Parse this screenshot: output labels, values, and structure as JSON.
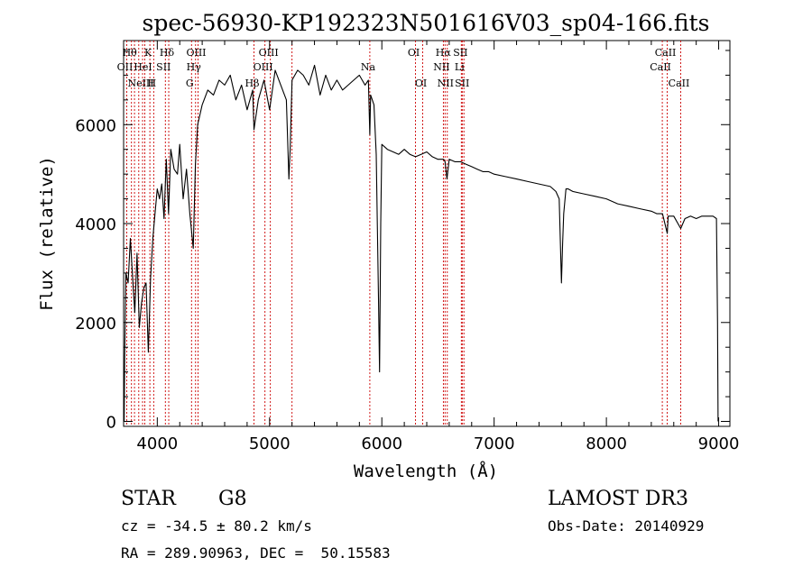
{
  "header": {
    "title": "spec-56930-KP192323N501616V03_sp04-166.fits"
  },
  "footer": {
    "class_label": "STAR",
    "subclass_label": "G8",
    "survey_label": "LAMOST DR3",
    "cz_text": "cz = -34.5 ± 80.2 km/s",
    "obs_date_text": "Obs-Date: 20140929",
    "coords_text": "RA = 289.90963, DEC =  50.15583"
  },
  "chart_data": {
    "type": "line",
    "xlabel": "Wavelength (Å)",
    "ylabel": "Flux (relative)",
    "xlim": [
      3700,
      9100
    ],
    "ylim": [
      -100,
      7700
    ],
    "x_ticks": [
      4000,
      5000,
      6000,
      7000,
      8000,
      9000
    ],
    "y_ticks": [
      0,
      2000,
      4000,
      6000
    ],
    "grid": false,
    "line_color": "#000000",
    "line_marker_color": "#cc0000",
    "series": [
      {
        "x": [
          3705,
          3710,
          3720,
          3740,
          3760,
          3780,
          3800,
          3820,
          3840,
          3860,
          3880,
          3900,
          3920,
          3940,
          3960,
          3980,
          4000,
          4020,
          4040,
          4060,
          4080,
          4100,
          4120,
          4150,
          4180,
          4200,
          4230,
          4260,
          4290,
          4320,
          4340,
          4360,
          4400,
          4450,
          4500,
          4550,
          4600,
          4650,
          4700,
          4750,
          4800,
          4850,
          4861,
          4900,
          4950,
          5000,
          5050,
          5100,
          5150,
          5172,
          5183,
          5200,
          5250,
          5300,
          5350,
          5400,
          5450,
          5500,
          5550,
          5600,
          5650,
          5700,
          5750,
          5800,
          5850,
          5880,
          5893,
          5900,
          5930,
          5950,
          5970,
          5980,
          5990,
          6000,
          6050,
          6100,
          6150,
          6200,
          6250,
          6300,
          6350,
          6400,
          6450,
          6500,
          6550,
          6563,
          6580,
          6600,
          6650,
          6700,
          6750,
          6800,
          6850,
          6900,
          6950,
          7000,
          7100,
          7200,
          7300,
          7400,
          7500,
          7550,
          7580,
          7600,
          7610,
          7620,
          7640,
          7660,
          7700,
          7800,
          7900,
          8000,
          8100,
          8200,
          8300,
          8400,
          8450,
          8500,
          8542,
          8550,
          8600,
          8662,
          8700,
          8750,
          8800,
          8850,
          8900,
          8950,
          8980,
          8990,
          8995
        ],
        "y": [
          0,
          1300,
          3000,
          2800,
          3700,
          2900,
          2200,
          3400,
          1900,
          2400,
          2700,
          2800,
          1400,
          2900,
          3700,
          4200,
          4700,
          4500,
          4800,
          4100,
          5300,
          4200,
          5500,
          5100,
          5000,
          5600,
          4500,
          5100,
          4200,
          3500,
          5200,
          6000,
          6400,
          6700,
          6600,
          6900,
          6800,
          7000,
          6500,
          6800,
          6300,
          6700,
          5900,
          6500,
          6900,
          6300,
          7100,
          6800,
          6500,
          4900,
          5500,
          6900,
          7100,
          7000,
          6800,
          7200,
          6600,
          7000,
          6700,
          6900,
          6700,
          6800,
          6900,
          7000,
          6800,
          6900,
          5800,
          6600,
          6400,
          5400,
          2500,
          1000,
          4000,
          5600,
          5500,
          5450,
          5400,
          5500,
          5400,
          5350,
          5400,
          5450,
          5350,
          5300,
          5300,
          5250,
          4900,
          5300,
          5250,
          5250,
          5200,
          5150,
          5100,
          5050,
          5050,
          5000,
          4950,
          4900,
          4850,
          4800,
          4750,
          4650,
          4500,
          2800,
          3600,
          4200,
          4700,
          4700,
          4650,
          4600,
          4550,
          4500,
          4400,
          4350,
          4300,
          4250,
          4200,
          4200,
          3800,
          4150,
          4150,
          3900,
          4100,
          4150,
          4100,
          4150,
          4150,
          4150,
          4100,
          2000,
          0
        ]
      }
    ],
    "line_markers": [
      {
        "x": 3728,
        "label": "OII",
        "row": 1
      },
      {
        "x": 3770,
        "label": "Hθ",
        "row": 0
      },
      {
        "x": 3797,
        "label": "",
        "row": -1
      },
      {
        "x": 3835,
        "label": "",
        "row": -1
      },
      {
        "x": 3869,
        "label": "NeIII",
        "row": 2
      },
      {
        "x": 3889,
        "label": "HeI",
        "row": 1
      },
      {
        "x": 3934,
        "label": "K",
        "row": 0
      },
      {
        "x": 3968,
        "label": "H",
        "row": 2
      },
      {
        "x": 4072,
        "label": "SII",
        "row": 1
      },
      {
        "x": 4102,
        "label": "Hδ",
        "row": 0
      },
      {
        "x": 4305,
        "label": "G",
        "row": 2
      },
      {
        "x": 4341,
        "label": "Hγ",
        "row": 1
      },
      {
        "x": 4363,
        "label": "OIII",
        "row": 0
      },
      {
        "x": 4861,
        "label": "Hβ",
        "row": 2
      },
      {
        "x": 4959,
        "label": "OIII",
        "row": 1
      },
      {
        "x": 5007,
        "label": "OIII",
        "row": 0
      },
      {
        "x": 5200,
        "label": "",
        "row": -1
      },
      {
        "x": 5893,
        "label": "Na",
        "row": 1
      },
      {
        "x": 6300,
        "label": "OI",
        "row": 0
      },
      {
        "x": 6364,
        "label": "OI",
        "row": 2
      },
      {
        "x": 6548,
        "label": "NII",
        "row": 1
      },
      {
        "x": 6563,
        "label": "Hα",
        "row": 0
      },
      {
        "x": 6583,
        "label": "NII",
        "row": 2
      },
      {
        "x": 6708,
        "label": "Li",
        "row": 1
      },
      {
        "x": 6716,
        "label": "SII",
        "row": 0
      },
      {
        "x": 6731,
        "label": "SII",
        "row": 2
      },
      {
        "x": 8498,
        "label": "CaII",
        "row": 1
      },
      {
        "x": 8542,
        "label": "CaII",
        "row": 0
      },
      {
        "x": 8662,
        "label": "CaII",
        "row": 2
      }
    ]
  }
}
